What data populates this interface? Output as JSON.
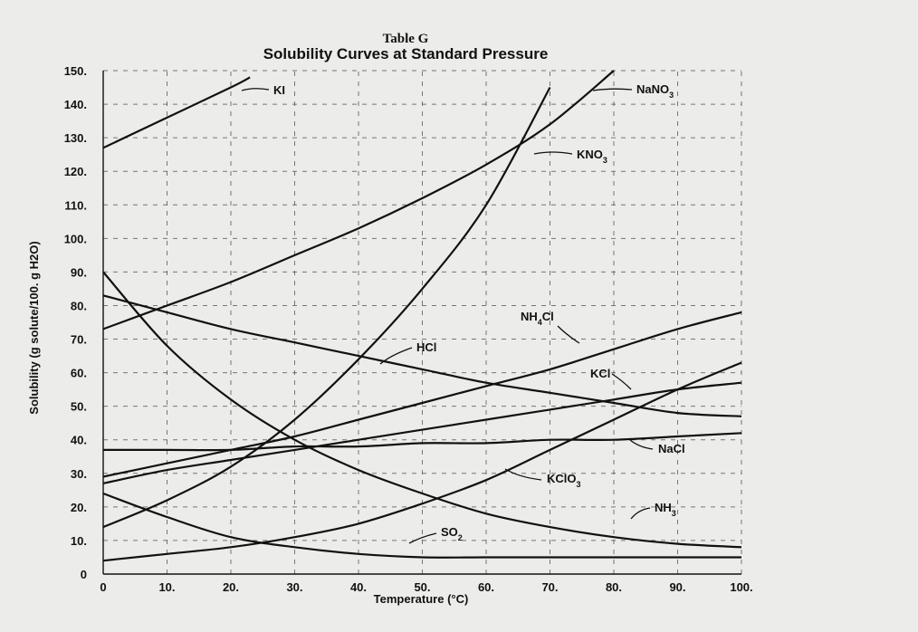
{
  "chart_data": {
    "type": "line",
    "title": "Table G",
    "subtitle": "Solubility Curves at Standard Pressure",
    "xlabel": "Temperature (°C)",
    "ylabel": "Solubility (g solute/100. g H2O)",
    "xlim": [
      0,
      100
    ],
    "ylim": [
      0,
      150
    ],
    "x_ticks": [
      "0",
      "10.",
      "20.",
      "30.",
      "40.",
      "50.",
      "60.",
      "70.",
      "80.",
      "90.",
      "100."
    ],
    "y_ticks": [
      "0",
      "10.",
      "20.",
      "30.",
      "40.",
      "50.",
      "60.",
      "70.",
      "80.",
      "90.",
      "100.",
      "110.",
      "120.",
      "130.",
      "140.",
      "150."
    ],
    "grid": true,
    "series": [
      {
        "name": "KI",
        "x": [
          0,
          10,
          20,
          23
        ],
        "y": [
          127,
          136,
          145,
          148
        ]
      },
      {
        "name": "NaNO3",
        "x": [
          0,
          10,
          20,
          30,
          40,
          50,
          60,
          70,
          80
        ],
        "y": [
          73,
          80,
          87,
          95,
          103,
          112,
          122,
          134,
          150
        ]
      },
      {
        "name": "KNO3",
        "x": [
          0,
          10,
          20,
          30,
          40,
          50,
          60,
          70
        ],
        "y": [
          14,
          22,
          32,
          46,
          64,
          85,
          110,
          145
        ]
      },
      {
        "name": "NH4Cl",
        "x": [
          0,
          10,
          20,
          30,
          40,
          50,
          60,
          70,
          80,
          90,
          100
        ],
        "y": [
          29,
          33,
          37,
          41,
          46,
          51,
          56,
          61,
          67,
          73,
          78
        ]
      },
      {
        "name": "HCl",
        "x": [
          0,
          10,
          20,
          30,
          40,
          50,
          60,
          70,
          80,
          90,
          100
        ],
        "y": [
          83,
          78,
          73,
          69,
          65,
          61,
          57,
          54,
          51,
          48,
          47
        ]
      },
      {
        "name": "KCl",
        "x": [
          0,
          10,
          20,
          30,
          40,
          50,
          60,
          70,
          80,
          90,
          100
        ],
        "y": [
          27,
          31,
          34,
          37,
          40,
          43,
          46,
          49,
          52,
          55,
          57
        ]
      },
      {
        "name": "NaCl",
        "x": [
          0,
          10,
          20,
          30,
          40,
          50,
          60,
          70,
          80,
          90,
          100
        ],
        "y": [
          37,
          37,
          37,
          38,
          38,
          39,
          39,
          40,
          40,
          41,
          42
        ]
      },
      {
        "name": "KClO3",
        "x": [
          0,
          10,
          20,
          30,
          40,
          50,
          60,
          70,
          80,
          90,
          100
        ],
        "y": [
          4,
          6,
          8,
          11,
          15,
          21,
          28,
          37,
          46,
          55,
          63
        ]
      },
      {
        "name": "NH3",
        "x": [
          0,
          10,
          20,
          30,
          40,
          50,
          60,
          70,
          80,
          90,
          100
        ],
        "y": [
          90,
          68,
          52,
          40,
          31,
          24,
          18,
          14,
          11,
          9,
          8
        ]
      },
      {
        "name": "SO2",
        "x": [
          0,
          10,
          20,
          30,
          40,
          50,
          60,
          70,
          80,
          90,
          100
        ],
        "y": [
          24,
          17,
          11,
          8,
          6,
          5,
          5,
          5,
          5,
          5,
          5
        ]
      }
    ],
    "series_labels": [
      "KI",
      "NaNO3",
      "KNO3",
      "NH4Cl",
      "HCl",
      "KCl",
      "NaCl",
      "KClO3",
      "NH3",
      "SO2"
    ]
  }
}
